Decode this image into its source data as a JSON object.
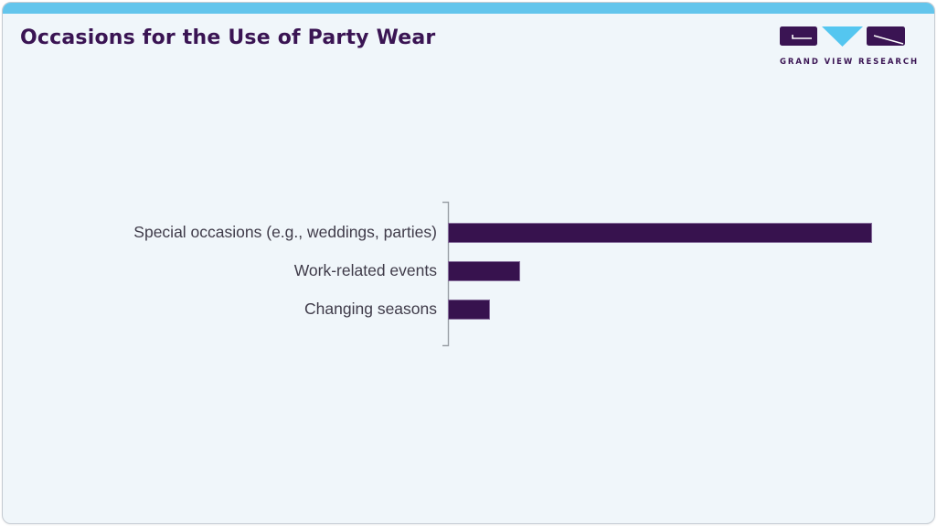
{
  "page": {
    "title": "Occasions for the Use of Party Wear"
  },
  "branding": {
    "logo_text": "GRAND VIEW RESEARCH"
  },
  "colors": {
    "card_background": "#f0f6fa",
    "top_strip": "#63c5ec",
    "title_text": "#3a1453",
    "bar_fill": "#37124e",
    "label_text": "#3f3b49",
    "axis_line": "#9aa0a6",
    "logo_purple": "#3a1453",
    "logo_blue": "#54c6f0"
  },
  "chart_data": {
    "type": "bar",
    "orientation": "horizontal",
    "title": "Occasions for the Use of Party Wear",
    "categories": [
      "Special occasions (e.g., weddings, parties)",
      "Work-related events",
      "Changing seasons"
    ],
    "values": [
      100,
      17,
      10
    ],
    "values_note": "relative bar lengths as % of longest bar; no numeric axis, gridlines, or data labels are shown in the chart",
    "xlabel": "",
    "ylabel": "",
    "grid": false,
    "legend": false,
    "bar_color": "#37124e"
  }
}
